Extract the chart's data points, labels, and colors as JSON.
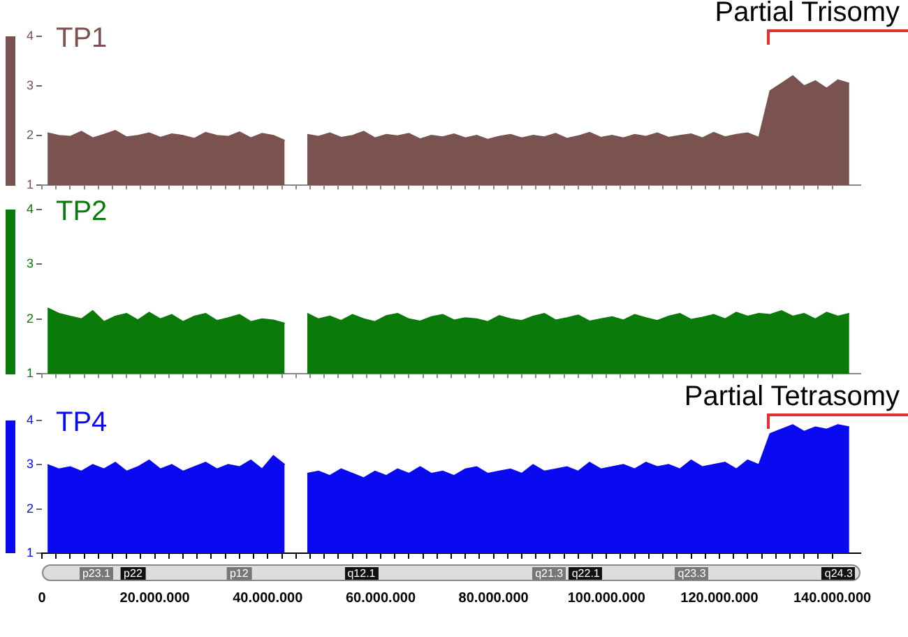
{
  "chart_data": [
    {
      "type": "area",
      "x": [
        1000000,
        3000000,
        5000000,
        7000000,
        9000000,
        11000000,
        13000000,
        15000000,
        17000000,
        19000000,
        21000000,
        23000000,
        25000000,
        27000000,
        29000000,
        31000000,
        33000000,
        35000000,
        37000000,
        39000000,
        41000000,
        43000000,
        45000000,
        47000000,
        49000000,
        51000000,
        53000000,
        55000000,
        57000000,
        59000000,
        61000000,
        63000000,
        65000000,
        67000000,
        69000000,
        71000000,
        73000000,
        75000000,
        77000000,
        79000000,
        81000000,
        83000000,
        85000000,
        87000000,
        89000000,
        91000000,
        93000000,
        95000000,
        97000000,
        99000000,
        101000000,
        103000000,
        105000000,
        107000000,
        109000000,
        111000000,
        113000000,
        115000000,
        117000000,
        119000000,
        121000000,
        123000000,
        125000000,
        127000000,
        129000000,
        131000000,
        133000000,
        135000000,
        137000000,
        139000000,
        141000000,
        143000000
      ],
      "series": [
        {
          "name": "TP1",
          "color": "#7a5250",
          "values": [
            2.05,
            2.0,
            1.98,
            2.08,
            1.95,
            2.02,
            2.1,
            1.97,
            2.0,
            2.05,
            1.96,
            2.03,
            2.0,
            1.94,
            2.06,
            2.0,
            1.98,
            2.07,
            1.95,
            2.04,
            2.0,
            1.9,
            null,
            2.02,
            1.98,
            2.05,
            1.96,
            2.0,
            2.08,
            1.95,
            2.02,
            1.99,
            2.04,
            1.93,
            2.0,
            1.97,
            2.03,
            1.95,
            2.0,
            1.92,
            1.98,
            2.02,
            1.95,
            2.0,
            1.97,
            2.04,
            1.94,
            1.99,
            2.06,
            1.96,
            2.0,
            1.95,
            2.02,
            1.98,
            2.05,
            1.96,
            2.0,
            2.03,
            1.95,
            2.06,
            1.97,
            2.02,
            2.05,
            1.96,
            2.9,
            3.05,
            3.2,
            3.0,
            3.1,
            2.95,
            3.12,
            3.05
          ]
        }
      ],
      "xlim": [
        0,
        145000000
      ],
      "ylim": [
        1,
        4
      ],
      "yticks": [
        1,
        2,
        3,
        4
      ],
      "tick_labels": "y",
      "xticks": [
        0,
        20000000,
        40000000,
        60000000,
        80000000,
        100000000,
        120000000,
        140000000
      ],
      "annotations": [
        "Partial Trisomy"
      ]
    },
    {
      "type": "area",
      "x": [
        1000000,
        3000000,
        5000000,
        7000000,
        9000000,
        11000000,
        13000000,
        15000000,
        17000000,
        19000000,
        21000000,
        23000000,
        25000000,
        27000000,
        29000000,
        31000000,
        33000000,
        35000000,
        37000000,
        39000000,
        41000000,
        43000000,
        45000000,
        47000000,
        49000000,
        51000000,
        53000000,
        55000000,
        57000000,
        59000000,
        61000000,
        63000000,
        65000000,
        67000000,
        69000000,
        71000000,
        73000000,
        75000000,
        77000000,
        79000000,
        81000000,
        83000000,
        85000000,
        87000000,
        89000000,
        91000000,
        93000000,
        95000000,
        97000000,
        99000000,
        101000000,
        103000000,
        105000000,
        107000000,
        109000000,
        111000000,
        113000000,
        115000000,
        117000000,
        119000000,
        121000000,
        123000000,
        125000000,
        127000000,
        129000000,
        131000000,
        133000000,
        135000000,
        137000000,
        139000000,
        141000000,
        143000000
      ],
      "series": [
        {
          "name": "TP2",
          "color": "#0a7a0a",
          "values": [
            2.2,
            2.1,
            2.05,
            2.0,
            2.15,
            1.95,
            2.05,
            2.1,
            1.98,
            2.12,
            2.0,
            2.08,
            1.95,
            2.05,
            2.1,
            1.97,
            2.02,
            2.08,
            1.95,
            2.0,
            1.98,
            1.92,
            null,
            2.1,
            2.0,
            2.05,
            1.97,
            2.08,
            2.0,
            1.95,
            2.06,
            2.1,
            2.0,
            1.96,
            2.04,
            2.08,
            1.98,
            2.02,
            2.0,
            1.95,
            2.06,
            2.0,
            1.97,
            2.05,
            2.1,
            1.98,
            2.02,
            2.07,
            1.96,
            2.0,
            2.04,
            1.98,
            2.08,
            2.02,
            1.97,
            2.05,
            2.1,
            1.99,
            2.03,
            2.08,
            2.0,
            2.12,
            2.05,
            2.1,
            2.08,
            2.15,
            2.05,
            2.1,
            2.0,
            2.12,
            2.05,
            2.1
          ]
        }
      ],
      "xlim": [
        0,
        145000000
      ],
      "ylim": [
        1,
        4
      ],
      "yticks": [
        1,
        2,
        3,
        4
      ],
      "tick_labels": "y",
      "xticks": [
        0,
        20000000,
        40000000,
        60000000,
        80000000,
        100000000,
        120000000,
        140000000
      ]
    },
    {
      "type": "area",
      "x": [
        1000000,
        3000000,
        5000000,
        7000000,
        9000000,
        11000000,
        13000000,
        15000000,
        17000000,
        19000000,
        21000000,
        23000000,
        25000000,
        27000000,
        29000000,
        31000000,
        33000000,
        35000000,
        37000000,
        39000000,
        41000000,
        43000000,
        45000000,
        47000000,
        49000000,
        51000000,
        53000000,
        55000000,
        57000000,
        59000000,
        61000000,
        63000000,
        65000000,
        67000000,
        69000000,
        71000000,
        73000000,
        75000000,
        77000000,
        79000000,
        81000000,
        83000000,
        85000000,
        87000000,
        89000000,
        91000000,
        93000000,
        95000000,
        97000000,
        99000000,
        101000000,
        103000000,
        105000000,
        107000000,
        109000000,
        111000000,
        113000000,
        115000000,
        117000000,
        119000000,
        121000000,
        123000000,
        125000000,
        127000000,
        129000000,
        131000000,
        133000000,
        135000000,
        137000000,
        139000000,
        141000000,
        143000000
      ],
      "series": [
        {
          "name": "TP4",
          "color": "#0a0af0",
          "values": [
            3.0,
            2.9,
            2.95,
            2.85,
            3.0,
            2.9,
            3.05,
            2.85,
            2.95,
            3.1,
            2.9,
            3.0,
            2.85,
            2.95,
            3.05,
            2.9,
            3.0,
            2.95,
            3.1,
            2.9,
            3.2,
            3.0,
            null,
            2.8,
            2.85,
            2.75,
            2.9,
            2.8,
            2.7,
            2.85,
            2.75,
            2.9,
            2.8,
            2.95,
            2.8,
            2.85,
            2.75,
            2.9,
            2.95,
            2.8,
            2.85,
            2.9,
            2.8,
            3.0,
            2.85,
            2.9,
            2.95,
            2.85,
            3.05,
            2.9,
            2.95,
            3.0,
            2.9,
            3.05,
            2.95,
            3.0,
            2.9,
            3.1,
            2.95,
            3.0,
            3.05,
            2.9,
            3.1,
            3.0,
            3.7,
            3.8,
            3.9,
            3.75,
            3.85,
            3.8,
            3.9,
            3.85
          ]
        }
      ],
      "xlim": [
        0,
        145000000
      ],
      "ylim": [
        1,
        4
      ],
      "yticks": [
        1,
        2,
        3,
        4
      ],
      "xticks": [
        {
          "value": 0,
          "label": "0"
        },
        {
          "value": 20000000,
          "label": "20.000.000"
        },
        {
          "value": 40000000,
          "label": "40.000.000"
        },
        {
          "value": 60000000,
          "label": "60.000.000"
        },
        {
          "value": 80000000,
          "label": "80.000.000"
        },
        {
          "value": 100000000,
          "label": "100.000.000"
        },
        {
          "value": 120000000,
          "label": "120.000.000"
        },
        {
          "value": 140000000,
          "label": "140.000.000"
        }
      ],
      "annotations": [
        "Partial Tetrasomy",
        "p23.1",
        "p22",
        "p12",
        "q12.1",
        "q21.3",
        "q22.1",
        "q23.3",
        "q24.3"
      ]
    }
  ]
}
